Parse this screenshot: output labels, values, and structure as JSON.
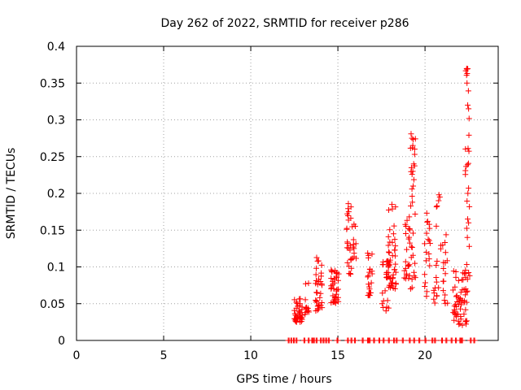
{
  "chart_data": {
    "type": "scatter",
    "title": "Day 262 of 2022, SRMTID for receiver p286",
    "xlabel": "GPS time / hours",
    "ylabel": "SRMTID / TECUs",
    "xlim": [
      0,
      24.2
    ],
    "ylim": [
      0,
      0.4
    ],
    "grid": true,
    "marker": "+",
    "color": "#ff0000",
    "x_ticks": [
      {
        "value": 0,
        "label": "0"
      },
      {
        "value": 5,
        "label": "5"
      },
      {
        "value": 10,
        "label": "10"
      },
      {
        "value": 15,
        "label": "15"
      },
      {
        "value": 20,
        "label": "20"
      }
    ],
    "y_ticks": [
      {
        "value": 0,
        "label": "0"
      },
      {
        "value": 0.05,
        "label": "0.05"
      },
      {
        "value": 0.1,
        "label": "0.1"
      },
      {
        "value": 0.15,
        "label": "0.15"
      },
      {
        "value": 0.2,
        "label": "0.2"
      },
      {
        "value": 0.25,
        "label": "0.25"
      },
      {
        "value": 0.3,
        "label": "0.3"
      },
      {
        "value": 0.35,
        "label": "0.35"
      },
      {
        "value": 0.4,
        "label": "0.4"
      }
    ],
    "clusters": [
      {
        "x": [
          12.5,
          12.95
        ],
        "y": [
          0.025,
          0.058
        ],
        "n": 40
      },
      {
        "x": [
          13.1,
          13.35
        ],
        "y": [
          0.03,
          0.08
        ],
        "n": 12
      },
      {
        "x": [
          13.7,
          14.1
        ],
        "y": [
          0.04,
          0.115
        ],
        "n": 35
      },
      {
        "x": [
          14.6,
          15.05
        ],
        "y": [
          0.05,
          0.1
        ],
        "n": 40
      },
      {
        "x": [
          15.5,
          15.8
        ],
        "y": [
          0.09,
          0.185
        ],
        "n": 22
      },
      {
        "x": [
          15.8,
          16.05
        ],
        "y": [
          0.11,
          0.165
        ],
        "n": 12
      },
      {
        "x": [
          16.6,
          17.0
        ],
        "y": [
          0.06,
          0.12
        ],
        "n": 22
      },
      {
        "x": [
          17.5,
          17.95
        ],
        "y": [
          0.04,
          0.11
        ],
        "n": 25
      },
      {
        "x": [
          17.85,
          18.35
        ],
        "y": [
          0.07,
          0.185
        ],
        "n": 45
      },
      {
        "x": [
          18.8,
          19.15
        ],
        "y": [
          0.08,
          0.175
        ],
        "n": 22
      },
      {
        "x": [
          19.1,
          19.45
        ],
        "y": [
          0.07,
          0.28
        ],
        "n": 28
      },
      {
        "x": [
          19.95,
          20.3
        ],
        "y": [
          0.06,
          0.17
        ],
        "n": 18
      },
      {
        "x": [
          20.5,
          20.8
        ],
        "y": [
          0.05,
          0.2
        ],
        "n": 15
      },
      {
        "x": [
          20.9,
          21.3
        ],
        "y": [
          0.05,
          0.15
        ],
        "n": 18
      },
      {
        "x": [
          21.6,
          22.4
        ],
        "y": [
          0.02,
          0.1
        ],
        "n": 55
      },
      {
        "x": [
          22.3,
          22.6
        ],
        "y": [
          0.05,
          0.37
        ],
        "n": 25
      }
    ],
    "zero_points_x": [
      12.15,
      12.3,
      12.45,
      12.6,
      13.05,
      13.3,
      13.5,
      13.6,
      13.75,
      14.0,
      14.15,
      14.3,
      14.45,
      14.95,
      15.55,
      15.75,
      15.95,
      16.4,
      16.7,
      16.8,
      17.05,
      17.35,
      17.6,
      17.9,
      18.2,
      18.35,
      18.7,
      19.1,
      19.35,
      19.65,
      20.0,
      20.4,
      20.55,
      20.95,
      21.2,
      21.5,
      21.75,
      22.0,
      22.1,
      22.6,
      22.8
    ],
    "points": [
      [
        22.4,
        0.369
      ],
      [
        22.42,
        0.363
      ],
      [
        22.41,
        0.35
      ],
      [
        22.45,
        0.32
      ],
      [
        22.5,
        0.315
      ],
      [
        22.47,
        0.261
      ],
      [
        22.44,
        0.239
      ],
      [
        22.5,
        0.207
      ],
      [
        22.46,
        0.2
      ],
      [
        22.45,
        0.165
      ],
      [
        22.5,
        0.16
      ],
      [
        22.43,
        0.14
      ],
      [
        19.2,
        0.281
      ],
      [
        19.25,
        0.275
      ],
      [
        19.3,
        0.265
      ],
      [
        19.28,
        0.262
      ],
      [
        19.35,
        0.24
      ],
      [
        19.22,
        0.235
      ],
      [
        19.3,
        0.23
      ],
      [
        19.32,
        0.21
      ],
      [
        20.8,
        0.198
      ],
      [
        20.85,
        0.195
      ],
      [
        20.78,
        0.19
      ],
      [
        15.6,
        0.186
      ],
      [
        15.62,
        0.175
      ],
      [
        18.1,
        0.185
      ],
      [
        20.1,
        0.173
      ],
      [
        20.15,
        0.162
      ]
    ]
  }
}
